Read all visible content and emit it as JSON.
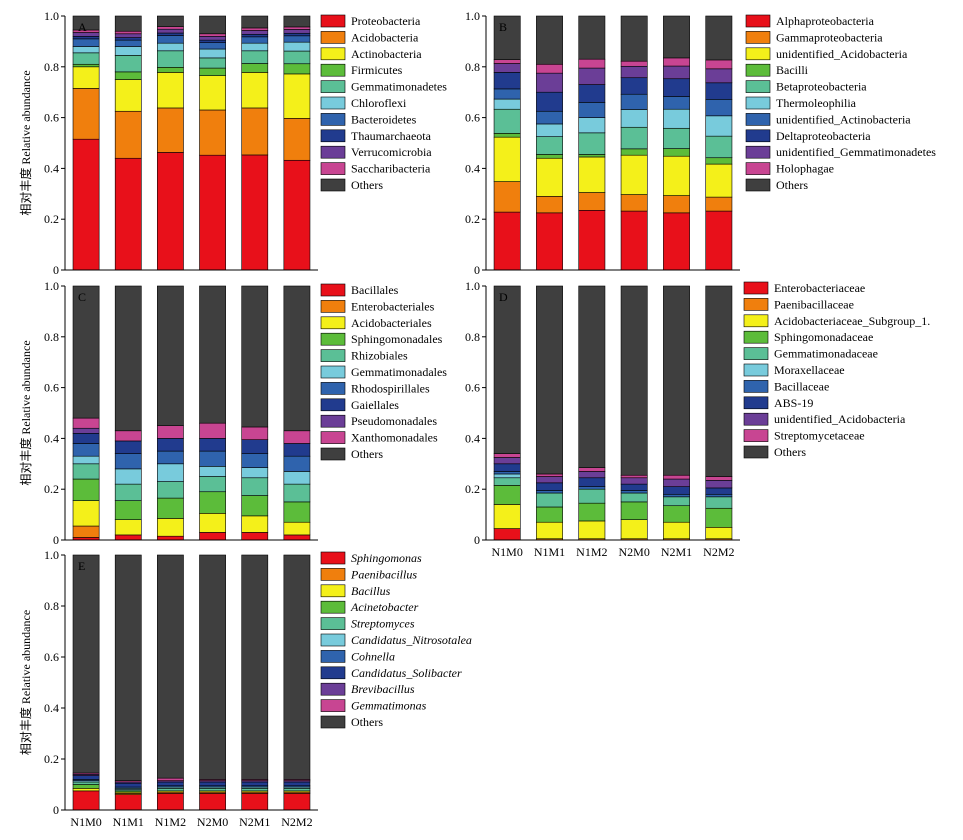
{
  "figure": {
    "samples": [
      "N1M0",
      "N1M1",
      "N1M2",
      "N2M0",
      "N2M1",
      "N2M2"
    ],
    "ylabel": "相对丰度 Relative abundance",
    "yticks": [
      "0",
      "0.2",
      "0.4",
      "0.6",
      "0.8",
      "1.0"
    ]
  },
  "colors": {
    "c1": "#e8101a",
    "c2": "#f07f0d",
    "c3": "#f4f01a",
    "c4": "#5cbc3a",
    "c5": "#5bbf96",
    "c6": "#78cbdc",
    "c7": "#2f63ad",
    "c8": "#213b8e",
    "c9": "#6b3e97",
    "c10": "#c84592",
    "c11": "#3f3f3f"
  },
  "chart_data": [
    {
      "type": "bar",
      "stacked": true,
      "panel": "A",
      "categories": [
        "N1M0",
        "N1M1",
        "N1M2",
        "N2M0",
        "N2M1",
        "N2M2"
      ],
      "ylabel": "相对丰度 Relative abundance",
      "ylim": [
        0,
        1
      ],
      "legend_italic": false,
      "series": [
        {
          "name": "Proteobacteria",
          "values": [
            0.515,
            0.44,
            0.463,
            0.452,
            0.453,
            0.432
          ]
        },
        {
          "name": "Acidobacteria",
          "values": [
            0.2,
            0.185,
            0.175,
            0.178,
            0.185,
            0.165
          ]
        },
        {
          "name": "Actinobacteria",
          "values": [
            0.085,
            0.125,
            0.14,
            0.135,
            0.14,
            0.175
          ]
        },
        {
          "name": "Firmicutes",
          "values": [
            0.01,
            0.03,
            0.02,
            0.03,
            0.035,
            0.04
          ]
        },
        {
          "name": "Gemmatimonadetes",
          "values": [
            0.045,
            0.065,
            0.065,
            0.04,
            0.05,
            0.05
          ]
        },
        {
          "name": "Chloroflexi",
          "values": [
            0.025,
            0.035,
            0.03,
            0.035,
            0.03,
            0.035
          ]
        },
        {
          "name": "Bacteroidetes",
          "values": [
            0.03,
            0.025,
            0.03,
            0.025,
            0.025,
            0.025
          ]
        },
        {
          "name": "Thaumarchaeota",
          "values": [
            0.01,
            0.01,
            0.01,
            0.01,
            0.01,
            0.01
          ]
        },
        {
          "name": "Verrucomicrobia",
          "values": [
            0.015,
            0.015,
            0.015,
            0.015,
            0.015,
            0.015
          ]
        },
        {
          "name": "Saccharibacteria",
          "values": [
            0.01,
            0.01,
            0.01,
            0.01,
            0.01,
            0.01
          ]
        },
        {
          "name": "Others",
          "values": [
            0.055,
            0.06,
            0.042,
            0.07,
            0.047,
            0.043
          ]
        }
      ]
    },
    {
      "type": "bar",
      "stacked": true,
      "panel": "B",
      "categories": [
        "N1M0",
        "N1M1",
        "N1M2",
        "N2M0",
        "N2M1",
        "N2M2"
      ],
      "ylabel": "",
      "ylim": [
        0,
        1
      ],
      "legend_italic": false,
      "series": [
        {
          "name": "Alphaproteobacteria",
          "values": [
            0.228,
            0.225,
            0.235,
            0.232,
            0.225,
            0.232
          ]
        },
        {
          "name": "Gammaproteobacteria",
          "values": [
            0.12,
            0.065,
            0.07,
            0.065,
            0.068,
            0.055
          ]
        },
        {
          "name": "unidentified_Acidobacteria",
          "values": [
            0.175,
            0.15,
            0.14,
            0.155,
            0.155,
            0.13
          ]
        },
        {
          "name": "Bacilli",
          "values": [
            0.015,
            0.015,
            0.01,
            0.025,
            0.03,
            0.025
          ]
        },
        {
          "name": "Betaproteobacteria",
          "values": [
            0.095,
            0.07,
            0.085,
            0.085,
            0.08,
            0.085
          ]
        },
        {
          "name": "Thermoleophilia",
          "values": [
            0.04,
            0.05,
            0.06,
            0.07,
            0.075,
            0.08
          ]
        },
        {
          "name": "unidentified_Actinobacteria",
          "values": [
            0.04,
            0.05,
            0.06,
            0.06,
            0.05,
            0.065
          ]
        },
        {
          "name": "Deltaproteobacteria",
          "values": [
            0.065,
            0.075,
            0.07,
            0.065,
            0.07,
            0.065
          ]
        },
        {
          "name": "unidentified_Gemmatimonadetes",
          "values": [
            0.035,
            0.075,
            0.065,
            0.045,
            0.05,
            0.055
          ]
        },
        {
          "name": "Holophagae",
          "values": [
            0.015,
            0.035,
            0.035,
            0.02,
            0.032,
            0.035
          ]
        },
        {
          "name": "Others",
          "values": [
            0.172,
            0.19,
            0.17,
            0.178,
            0.165,
            0.173
          ]
        }
      ]
    },
    {
      "type": "bar",
      "stacked": true,
      "panel": "C",
      "categories": [
        "N1M0",
        "N1M1",
        "N1M2",
        "N2M0",
        "N2M1",
        "N2M2"
      ],
      "ylabel": "相对丰度 Relative abundance",
      "ylim": [
        0,
        1
      ],
      "legend_italic": false,
      "series": [
        {
          "name": "Bacillales",
          "values": [
            0.01,
            0.02,
            0.015,
            0.03,
            0.03,
            0.02
          ]
        },
        {
          "name": "Enterobacteriales",
          "values": [
            0.045,
            0.0,
            0.0,
            0.0,
            0.0,
            0.0
          ]
        },
        {
          "name": "Acidobacteriales",
          "values": [
            0.1,
            0.06,
            0.07,
            0.075,
            0.065,
            0.05
          ]
        },
        {
          "name": "Sphingomonadales",
          "values": [
            0.085,
            0.075,
            0.08,
            0.085,
            0.08,
            0.08
          ]
        },
        {
          "name": "Rhizobiales",
          "values": [
            0.06,
            0.065,
            0.065,
            0.06,
            0.07,
            0.07
          ]
        },
        {
          "name": "Gemmatimonadales",
          "values": [
            0.03,
            0.06,
            0.07,
            0.04,
            0.04,
            0.05
          ]
        },
        {
          "name": "Rhodospirillales",
          "values": [
            0.05,
            0.06,
            0.05,
            0.06,
            0.055,
            0.06
          ]
        },
        {
          "name": "Gaiellales",
          "values": [
            0.04,
            0.05,
            0.05,
            0.05,
            0.055,
            0.05
          ]
        },
        {
          "name": "Pseudomonadales",
          "values": [
            0.02,
            0.0,
            0.0,
            0.0,
            0.0,
            0.0
          ]
        },
        {
          "name": "Xanthomonadales",
          "values": [
            0.04,
            0.04,
            0.05,
            0.06,
            0.05,
            0.05
          ]
        },
        {
          "name": "Others",
          "values": [
            0.52,
            0.57,
            0.55,
            0.54,
            0.555,
            0.57
          ]
        }
      ]
    },
    {
      "type": "bar",
      "stacked": true,
      "panel": "D",
      "categories": [
        "N1M0",
        "N1M1",
        "N1M2",
        "N2M0",
        "N2M1",
        "N2M2"
      ],
      "ylabel": "",
      "ylim": [
        0,
        1
      ],
      "legend_italic": false,
      "series": [
        {
          "name": "Enterobacteriaceae",
          "values": [
            0.045,
            0.0,
            0.0,
            0.0,
            0.0,
            0.0
          ]
        },
        {
          "name": "Paenibacillaceae",
          "values": [
            0.0,
            0.005,
            0.005,
            0.005,
            0.005,
            0.005
          ]
        },
        {
          "name": "Acidobacteriaceae_Subgroup_1.",
          "values": [
            0.095,
            0.065,
            0.07,
            0.075,
            0.065,
            0.045
          ]
        },
        {
          "name": "Sphingomonadaceae",
          "values": [
            0.075,
            0.06,
            0.07,
            0.07,
            0.065,
            0.075
          ]
        },
        {
          "name": "Gemmatimonadaceae",
          "values": [
            0.03,
            0.055,
            0.055,
            0.035,
            0.035,
            0.045
          ]
        },
        {
          "name": "Moraxellaceae",
          "values": [
            0.015,
            0.0,
            0.0,
            0.0,
            0.0,
            0.0
          ]
        },
        {
          "name": "Bacillaceae",
          "values": [
            0.01,
            0.01,
            0.01,
            0.01,
            0.01,
            0.01
          ]
        },
        {
          "name": "ABS-19",
          "values": [
            0.03,
            0.03,
            0.035,
            0.025,
            0.03,
            0.025
          ]
        },
        {
          "name": "unidentified_Acidobacteria",
          "values": [
            0.025,
            0.025,
            0.025,
            0.025,
            0.03,
            0.03
          ]
        },
        {
          "name": "Streptomycetaceae",
          "values": [
            0.015,
            0.01,
            0.015,
            0.01,
            0.015,
            0.015
          ]
        },
        {
          "name": "Others",
          "values": [
            0.66,
            0.74,
            0.715,
            0.745,
            0.745,
            0.75
          ]
        }
      ]
    },
    {
      "type": "bar",
      "stacked": true,
      "panel": "E",
      "categories": [
        "N1M0",
        "N1M1",
        "N1M2",
        "N2M0",
        "N2M1",
        "N2M2"
      ],
      "ylabel": "相对丰度 Relative abundance",
      "ylim": [
        0,
        1
      ],
      "legend_italic": true,
      "series": [
        {
          "name": "Sphingomonas",
          "values": [
            0.075,
            0.06,
            0.065,
            0.065,
            0.065,
            0.065
          ]
        },
        {
          "name": "Paenibacillus",
          "values": [
            0.0,
            0.005,
            0.005,
            0.005,
            0.005,
            0.005
          ]
        },
        {
          "name": "Bacillus",
          "values": [
            0.01,
            0.005,
            0.005,
            0.005,
            0.005,
            0.005
          ]
        },
        {
          "name": "Acinetobacter",
          "values": [
            0.015,
            0.005,
            0.0,
            0.0,
            0.0,
            0.0
          ]
        },
        {
          "name": "Streptomyces",
          "values": [
            0.01,
            0.005,
            0.01,
            0.01,
            0.01,
            0.01
          ]
        },
        {
          "name": "Candidatus_Nitrosotalea",
          "values": [
            0.005,
            0.005,
            0.005,
            0.005,
            0.005,
            0.005
          ]
        },
        {
          "name": "Cohnella",
          "values": [
            0.005,
            0.005,
            0.005,
            0.005,
            0.005,
            0.005
          ]
        },
        {
          "name": "Candidatus_Solibacter",
          "values": [
            0.015,
            0.015,
            0.015,
            0.015,
            0.015,
            0.015
          ]
        },
        {
          "name": "Brevibacillus",
          "values": [
            0.005,
            0.005,
            0.005,
            0.005,
            0.005,
            0.005
          ]
        },
        {
          "name": "Gemmatimonas",
          "values": [
            0.005,
            0.005,
            0.01,
            0.005,
            0.005,
            0.005
          ]
        },
        {
          "name": "Others",
          "values": [
            0.855,
            0.885,
            0.875,
            0.88,
            0.88,
            0.88
          ]
        }
      ]
    }
  ]
}
